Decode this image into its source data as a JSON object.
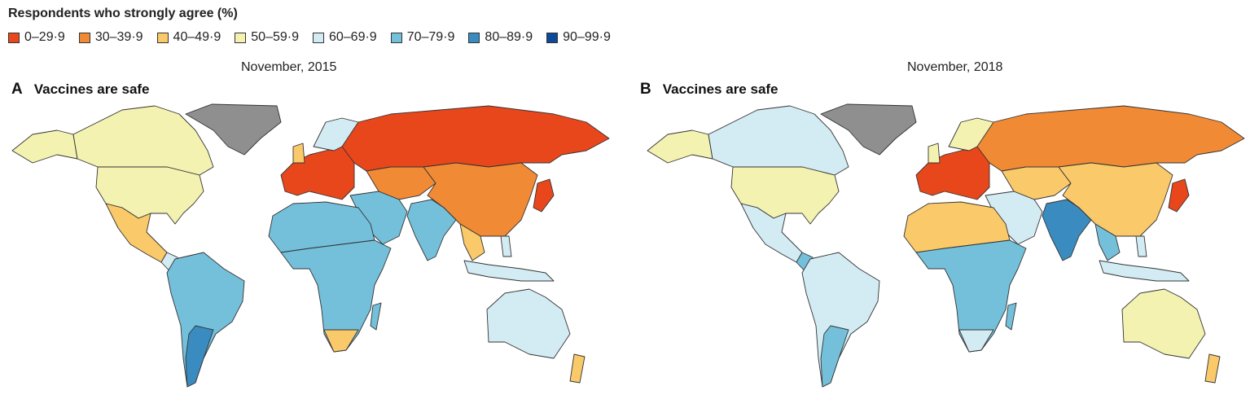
{
  "legend": {
    "title": "Respondents who strongly agree (%)",
    "bins": [
      {
        "label": "0–29·9",
        "color": "#e8471b"
      },
      {
        "label": "30–39·9",
        "color": "#f08a35"
      },
      {
        "label": "40–49·9",
        "color": "#f9c96a"
      },
      {
        "label": "50–59·9",
        "color": "#f4f2b0"
      },
      {
        "label": "60–69·9",
        "color": "#d3ebf3"
      },
      {
        "label": "70–79·9",
        "color": "#74c0da"
      },
      {
        "label": "80–89·9",
        "color": "#3a8cc0"
      },
      {
        "label": "90–99·9",
        "color": "#0d4a9a"
      }
    ],
    "no_data_color": "#8f8f8f"
  },
  "panels": [
    {
      "letter": "A",
      "title": "Vaccines are safe",
      "date": "November, 2015",
      "regions": {
        "alaska": 3,
        "canada": 3,
        "usa": 3,
        "mexico": 2,
        "central_america": 4,
        "greenland": -1,
        "south_america": 5,
        "argentina": 6,
        "western_europe": 0,
        "scandinavia": 4,
        "uk": 2,
        "russia": 0,
        "central_asia": 1,
        "china": 1,
        "middle_east": 5,
        "india": 5,
        "se_asia": 2,
        "japan": 0,
        "indonesia": 4,
        "philippines": 4,
        "north_africa": 5,
        "subsaharan_africa": 5,
        "south_africa": 2,
        "madagascar": 5,
        "australia": 4,
        "new_zealand": 2
      }
    },
    {
      "letter": "B",
      "title": "Vaccines are safe",
      "date": "November, 2018",
      "regions": {
        "alaska": 3,
        "canada": 4,
        "usa": 3,
        "mexico": 4,
        "central_america": 5,
        "greenland": -1,
        "south_america": 4,
        "argentina": 5,
        "western_europe": 0,
        "scandinavia": 3,
        "uk": 3,
        "russia": 1,
        "central_asia": 2,
        "china": 2,
        "middle_east": 4,
        "india": 6,
        "se_asia": 5,
        "japan": 0,
        "indonesia": 4,
        "philippines": 4,
        "north_africa": 2,
        "subsaharan_africa": 5,
        "south_africa": 4,
        "madagascar": 5,
        "australia": 3,
        "new_zealand": 2
      }
    }
  ]
}
